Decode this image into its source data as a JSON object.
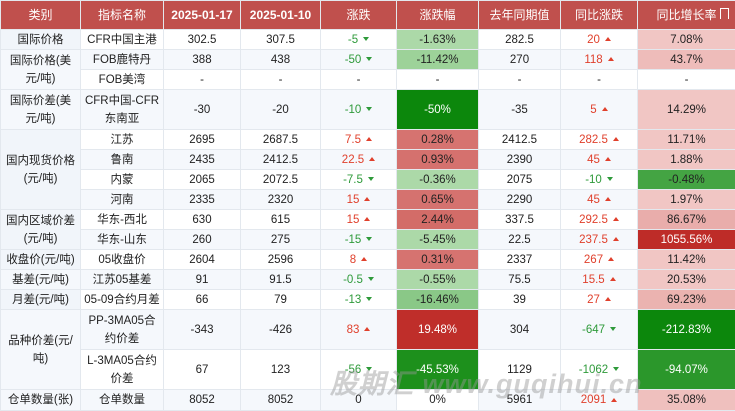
{
  "table": {
    "header": [
      "类别",
      "指标名称",
      "2025-01-17",
      "2025-01-10",
      "涨跌",
      "涨跌幅",
      "去年同期值",
      "同比涨跌",
      "同比增长率"
    ],
    "groups": [
      {
        "category": "国际价格",
        "rows": [
          [
            "CFR中国主港",
            302.5,
            307.5,
            -5,
            "-1.63%",
            282.5,
            20,
            "7.08%"
          ]
        ]
      },
      {
        "category": "国际价格(美元/吨)",
        "rows": [
          [
            "FOB鹿特丹",
            388,
            438,
            -50,
            "-11.42%",
            270,
            118,
            "43.7%"
          ],
          [
            "FOB美湾",
            "-",
            "-",
            "-",
            "-",
            "-",
            "-",
            "-"
          ]
        ]
      },
      {
        "category": "国际价差(美元/吨)",
        "rows": [
          [
            "CFR中国-CFR东南亚",
            -30,
            -20,
            -10,
            "-50%",
            -35,
            5,
            "14.29%"
          ]
        ]
      },
      {
        "category": "国内现货价格(元/吨)",
        "rows": [
          [
            "江苏",
            2695,
            2687.5,
            7.5,
            "0.28%",
            2412.5,
            282.5,
            "11.71%"
          ],
          [
            "鲁南",
            2435,
            2412.5,
            22.5,
            "0.93%",
            2390,
            45,
            "1.88%"
          ],
          [
            "内蒙",
            2065,
            2072.5,
            -7.5,
            "-0.36%",
            2075,
            -10,
            "-0.48%"
          ],
          [
            "河南",
            2335,
            2320,
            15,
            "0.65%",
            2290,
            45,
            "1.97%"
          ]
        ]
      },
      {
        "category": "国内区域价差(元/吨)",
        "rows": [
          [
            "华东-西北",
            630,
            615,
            15,
            "2.44%",
            337.5,
            292.5,
            "86.67%"
          ],
          [
            "华东-山东",
            260,
            275,
            -15,
            "-5.45%",
            22.5,
            237.5,
            "1055.56%"
          ]
        ]
      },
      {
        "category": "收盘价(元/吨)",
        "rows": [
          [
            "05收盘价",
            2604,
            2596,
            8,
            "0.31%",
            2337,
            267,
            "11.42%"
          ]
        ]
      },
      {
        "category": "基差(元/吨)",
        "rows": [
          [
            "江苏05基差",
            91,
            91.5,
            -0.5,
            "-0.55%",
            75.5,
            15.5,
            "20.53%"
          ]
        ]
      },
      {
        "category": "月差(元/吨)",
        "rows": [
          [
            "05-09合约月差",
            66,
            79,
            -13,
            "-16.46%",
            39,
            27,
            "69.23%"
          ]
        ]
      },
      {
        "category": "品种价差(元/吨)",
        "rows": [
          [
            "PP-3MA05合约价差",
            -343,
            -426,
            83,
            "19.48%",
            304,
            -647,
            "-212.83%"
          ],
          [
            "L-3MA05合约价差",
            67,
            123,
            -56,
            "-45.53%",
            1129,
            -1062,
            "-94.07%"
          ]
        ]
      },
      {
        "category": "仓单数量(张)",
        "rows": [
          [
            "仓单数量",
            8052,
            8052,
            0,
            "0%",
            5961,
            2091,
            "35.08%"
          ]
        ]
      }
    ]
  },
  "watermark": "股期汇 www.guqihui.cn"
}
